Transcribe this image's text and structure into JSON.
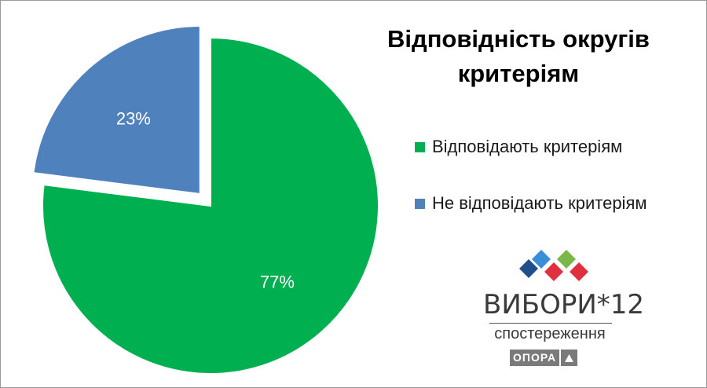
{
  "chart_data": {
    "type": "pie",
    "title": [
      "Відповідність округів",
      "критеріям"
    ],
    "slices": [
      {
        "name": "Відповідають критеріям",
        "value": 77,
        "label": "77%",
        "color": "#00B050",
        "exploded": false
      },
      {
        "name": "Не відповідають критеріям",
        "value": 23,
        "label": "23%",
        "color": "#4F81BD",
        "exploded": true
      }
    ],
    "legend_placement": "right"
  },
  "logo": {
    "main": "ВИБОРИ*12",
    "sub": "спостереження",
    "badge": "ОПОРА",
    "diamond_colors": [
      "#1F4E89",
      "#3A8DD8",
      "#7AB648",
      "#E0303D",
      "#E0303D"
    ]
  }
}
